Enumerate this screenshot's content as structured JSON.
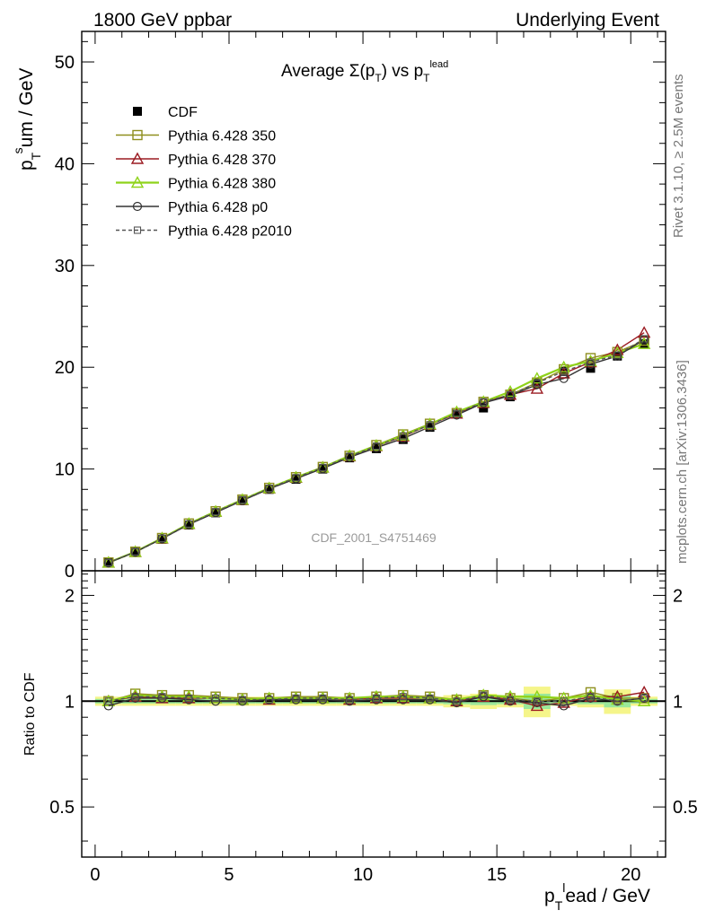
{
  "header": {
    "left": "1800 GeV ppbar",
    "right": "Underlying Event"
  },
  "side": {
    "rivet": "Rivet 3.1.10, ≥ 2.5M events",
    "mcplots": "mcplots.cern.ch [arXiv:1306.3436]"
  },
  "chart_data": [
    {
      "type": "line",
      "title": "Average Σ(p_T) vs p_T^lead",
      "ylabel": "p_T^sum / GeV",
      "watermark": "CDF_2001_S4751469",
      "xlim": [
        -0.5,
        21.3
      ],
      "ylim": [
        0,
        53
      ],
      "yticks": [
        0,
        10,
        20,
        30,
        40,
        50
      ],
      "x": [
        0.5,
        1.5,
        2.5,
        3.5,
        4.5,
        5.5,
        6.5,
        7.5,
        8.5,
        9.5,
        10.5,
        11.5,
        12.5,
        13.5,
        14.5,
        15.5,
        16.5,
        17.5,
        18.5,
        19.5,
        20.5
      ],
      "series": [
        {
          "name": "CDF",
          "color": "#000000",
          "style": "data",
          "values": [
            0.8,
            1.8,
            3.1,
            4.5,
            5.7,
            6.9,
            8.0,
            9.0,
            10.0,
            11.1,
            12.0,
            12.9,
            14.1,
            15.4,
            16.0,
            17.1,
            18.4,
            19.6,
            19.9,
            21.1,
            22.3
          ]
        },
        {
          "name": "Pythia 6.428 350",
          "color": "#8f8f1f",
          "marker": "square-open",
          "dash": "",
          "values": [
            0.82,
            1.88,
            3.22,
            4.65,
            5.85,
            7.0,
            8.15,
            9.2,
            10.2,
            11.3,
            12.35,
            13.4,
            14.45,
            15.5,
            16.6,
            17.3,
            18.5,
            19.8,
            20.9,
            21.5,
            22.6
          ]
        },
        {
          "name": "Pythia 6.428 370",
          "color": "#9b1b22",
          "marker": "triangle-open",
          "dash": "",
          "values": [
            0.8,
            1.85,
            3.17,
            4.6,
            5.8,
            6.95,
            8.1,
            9.15,
            10.15,
            11.25,
            12.25,
            13.2,
            14.35,
            15.45,
            16.5,
            17.3,
            17.9,
            19.4,
            20.5,
            21.7,
            23.4
          ]
        },
        {
          "name": "Pythia 6.428 380",
          "color": "#8fd31a",
          "marker": "triangle-open",
          "dash": "",
          "width": 2.2,
          "values": [
            0.81,
            1.86,
            3.2,
            4.62,
            5.82,
            6.98,
            8.12,
            9.18,
            10.15,
            11.3,
            12.3,
            13.3,
            14.4,
            15.6,
            16.6,
            17.6,
            18.9,
            20.0,
            20.6,
            21.4,
            22.3
          ]
        },
        {
          "name": "Pythia 6.428 p0",
          "color": "#333333",
          "marker": "circle-open",
          "dash": "",
          "values": [
            0.78,
            1.84,
            3.15,
            4.55,
            5.72,
            6.9,
            8.05,
            9.05,
            10.05,
            11.15,
            12.1,
            13.0,
            14.15,
            15.3,
            16.5,
            17.2,
            18.3,
            18.9,
            20.3,
            21.1,
            22.7
          ]
        },
        {
          "name": "Pythia 6.428 p2010",
          "color": "#555555",
          "marker": "square-small",
          "dash": "4,3",
          "values": [
            0.8,
            1.86,
            3.18,
            4.6,
            5.8,
            6.96,
            8.1,
            9.15,
            10.15,
            11.25,
            12.25,
            13.25,
            14.35,
            15.45,
            16.6,
            17.3,
            18.45,
            19.6,
            20.5,
            21.2,
            22.8
          ]
        }
      ],
      "legend_position": "top-left"
    },
    {
      "type": "line",
      "ylabel": "Ratio to CDF",
      "xlabel": "p_T^lead / GeV",
      "scale": "log",
      "ylim": [
        0.36,
        2.35
      ],
      "yticks": [
        0.5,
        1,
        2
      ],
      "xticks": [
        0,
        5,
        10,
        15,
        20
      ],
      "band_outer": [
        0.03,
        0.03,
        0.03,
        0.03,
        0.03,
        0.03,
        0.03,
        0.03,
        0.03,
        0.03,
        0.03,
        0.03,
        0.03,
        0.04,
        0.05,
        0.04,
        0.1,
        0.03,
        0.04,
        0.08,
        0.03
      ],
      "band_inner": [
        0.015,
        0.015,
        0.015,
        0.015,
        0.015,
        0.015,
        0.015,
        0.015,
        0.015,
        0.015,
        0.015,
        0.015,
        0.015,
        0.02,
        0.025,
        0.02,
        0.05,
        0.015,
        0.02,
        0.04,
        0.015
      ],
      "ratios": [
        {
          "values": [
            1.0,
            1.05,
            1.04,
            1.04,
            1.03,
            1.02,
            1.02,
            1.03,
            1.03,
            1.02,
            1.03,
            1.04,
            1.03,
            1.01,
            1.04,
            1.02,
            1.0,
            1.02,
            1.06,
            1.02,
            1.02
          ]
        },
        {
          "values": [
            1.0,
            1.03,
            1.02,
            1.02,
            1.02,
            1.01,
            1.01,
            1.02,
            1.02,
            1.01,
            1.02,
            1.02,
            1.02,
            1.0,
            1.03,
            1.01,
            0.97,
            0.99,
            1.03,
            1.03,
            1.06
          ]
        },
        {
          "values": [
            1.0,
            1.04,
            1.03,
            1.03,
            1.02,
            1.01,
            1.02,
            1.02,
            1.02,
            1.02,
            1.03,
            1.03,
            1.02,
            1.01,
            1.04,
            1.03,
            1.03,
            1.02,
            1.04,
            1.01,
            1.0
          ]
        },
        {
          "values": [
            0.97,
            1.02,
            1.02,
            1.01,
            1.0,
            1.0,
            1.01,
            1.01,
            1.01,
            1.0,
            1.01,
            1.01,
            1.01,
            0.99,
            1.03,
            1.0,
            0.99,
            0.97,
            1.02,
            1.0,
            1.02
          ]
        },
        {
          "values": [
            1.0,
            1.03,
            1.03,
            1.02,
            1.02,
            1.01,
            1.01,
            1.02,
            1.02,
            1.01,
            1.02,
            1.03,
            1.02,
            1.0,
            1.04,
            1.01,
            1.0,
            1.0,
            1.03,
            1.0,
            1.02
          ]
        }
      ]
    }
  ]
}
